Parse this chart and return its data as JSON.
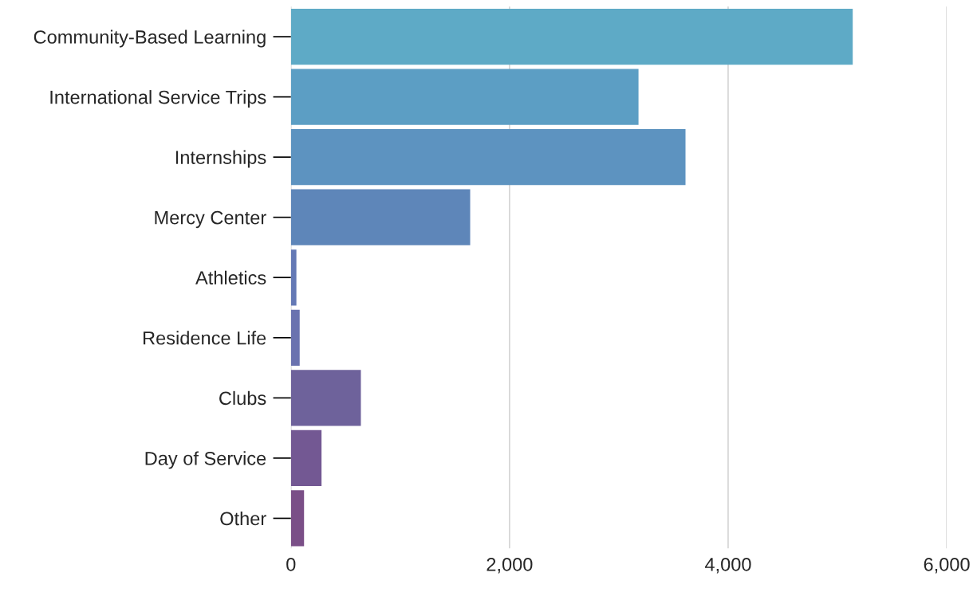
{
  "chart_data": {
    "type": "bar",
    "orientation": "horizontal",
    "categories": [
      "Community-Based Learning",
      "International Service Trips",
      "Internships",
      "Mercy Center",
      "Athletics",
      "Residence Life",
      "Clubs",
      "Day of Service",
      "Other"
    ],
    "values": [
      5140,
      3180,
      3610,
      1640,
      50,
      80,
      640,
      280,
      120
    ],
    "colors": [
      "#5eaac6",
      "#5c9ec4",
      "#5d93c0",
      "#5e86b9",
      "#6479b5",
      "#6a72af",
      "#6e629b",
      "#735893",
      "#7a4f87"
    ],
    "xlim": [
      0,
      6000
    ],
    "xticks": [
      0,
      {
        "value": 2000,
        "label": "2,000"
      },
      {
        "value": 4000,
        "label": "4,000"
      },
      {
        "value": 6000,
        "label": "6,000"
      }
    ],
    "grid": "x",
    "legend": false
  }
}
